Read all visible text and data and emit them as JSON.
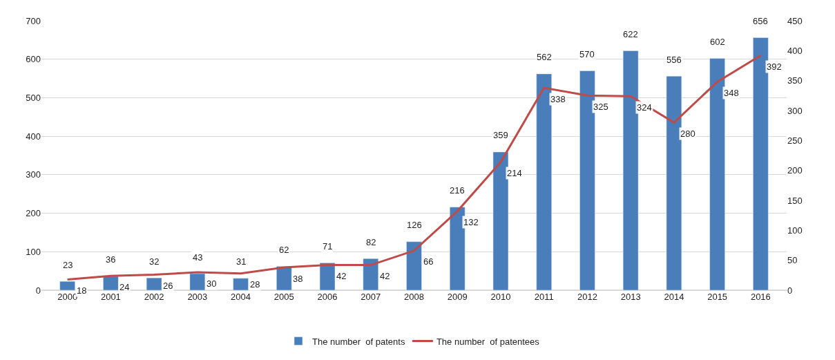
{
  "chart_data": {
    "type": "bar",
    "categories": [
      "2000",
      "2001",
      "2002",
      "2003",
      "2004",
      "2005",
      "2006",
      "2007",
      "2008",
      "2009",
      "2010",
      "2011",
      "2012",
      "2013",
      "2014",
      "2015",
      "2016"
    ],
    "series": [
      {
        "name": "The number  of patents",
        "type": "bar",
        "color": "#4a7ebb",
        "values": [
          23,
          36,
          32,
          43,
          31,
          62,
          71,
          82,
          126,
          216,
          359,
          562,
          570,
          622,
          556,
          602,
          656
        ]
      },
      {
        "name": "The number  of patentees",
        "type": "line",
        "axis": "y2",
        "color": "#be4b48",
        "values": [
          18,
          24,
          26,
          30,
          28,
          38,
          42,
          42,
          66,
          132,
          214,
          338,
          325,
          324,
          280,
          348,
          392
        ]
      }
    ],
    "ylim": [
      0,
      700
    ],
    "yticks": [
      0,
      100,
      200,
      300,
      400,
      500,
      600,
      700
    ],
    "y2lim": [
      0,
      450
    ],
    "y2ticks": [
      0,
      50,
      100,
      150,
      200,
      250,
      300,
      350,
      400,
      450
    ],
    "grid": "y",
    "legend": "bottom",
    "data_labels": true,
    "marker": "none",
    "line_style": "solid"
  }
}
